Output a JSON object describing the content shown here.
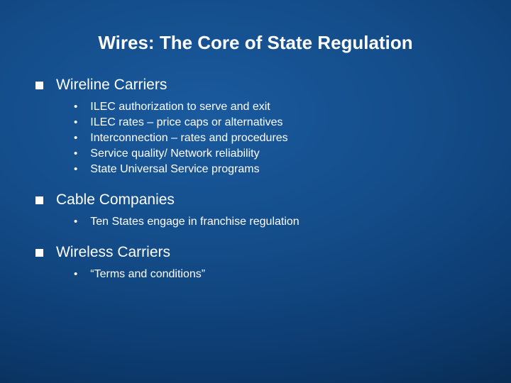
{
  "title": "Wires:  The Core of State Regulation",
  "sections": [
    {
      "heading": "Wireline Carriers",
      "items": [
        "ILEC authorization to serve and exit",
        "ILEC rates – price caps or alternatives",
        "Interconnection – rates and procedures",
        "Service quality/ Network reliability",
        "State Universal Service programs"
      ]
    },
    {
      "heading": "Cable Companies",
      "items": [
        "Ten States engage in franchise regulation"
      ]
    },
    {
      "heading": "Wireless Carriers",
      "items": [
        "“Terms and conditions”"
      ]
    }
  ],
  "colors": {
    "text": "#ffffff",
    "bg_center": "#1a5a9e",
    "bg_outer": "#041830"
  }
}
